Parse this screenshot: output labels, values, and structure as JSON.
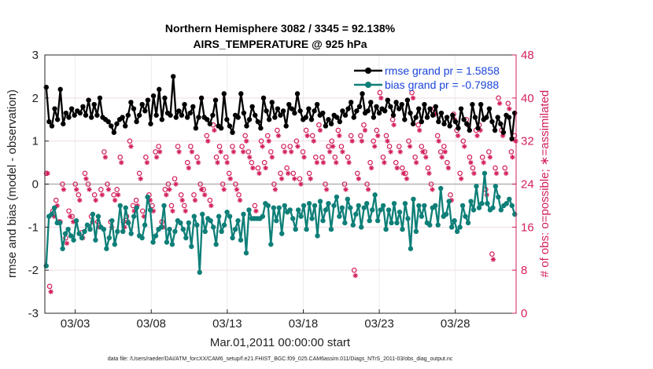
{
  "chart_data": {
    "type": "line",
    "title_line1": "Northern Hemisphere 3082 / 3345 = 92.138%",
    "title_line2": "AIRS_TEMPERATURE @ 925 hPa",
    "xlabel": "Mar.01,2011 00:00:00 start",
    "ylabel_left": "rmse and bias (model - observation)",
    "ylabel_right": "# of obs: o=possible; ∗=assimilated",
    "footer": "data file: /Users/raeder/DAI/ATM_forcXX/CAM6_setup/f.e21.FHIST_BGC.f09_025.CAM6assim.011/Diags_NTrS_2011-03/obs_diag_output.nc",
    "xlim": [
      1.0,
      32.0
    ],
    "ylim_left": [
      -3,
      3
    ],
    "ylim_right": [
      0,
      48
    ],
    "left_ticks": [
      "-3",
      "-2",
      "-1",
      "0",
      "1",
      "2",
      "3"
    ],
    "right_ticks": [
      "0",
      "8",
      "16",
      "24",
      "32",
      "40",
      "48"
    ],
    "x_ticks": [
      {
        "value": 3,
        "label": "03/03"
      },
      {
        "value": 8,
        "label": "03/08"
      },
      {
        "value": 13,
        "label": "03/13"
      },
      {
        "value": 18,
        "label": "03/18"
      },
      {
        "value": 23,
        "label": "03/23"
      },
      {
        "value": 28,
        "label": "03/28"
      }
    ],
    "legend": [
      {
        "name": "rmse",
        "label": "rmse grand pr = 1.5858"
      },
      {
        "name": "bias",
        "label": "bias grand pr = -0.7988"
      }
    ],
    "colors": {
      "rmse": "#000000",
      "bias": "#0e7f78",
      "obs": "#d21f5a",
      "zero_line": "#b4b4b4",
      "legend_text": "#1a44d8"
    },
    "series": [
      {
        "name": "rmse",
        "values": [
          2.25,
          1.45,
          1.35,
          1.75,
          1.5,
          2.2,
          1.4,
          1.65,
          1.55,
          1.75,
          1.6,
          1.7,
          1.65,
          1.8,
          1.6,
          1.95,
          1.55,
          1.85,
          1.6,
          2.0,
          1.55,
          1.5,
          1.45,
          1.35,
          1.2,
          1.4,
          1.5,
          1.55,
          1.35,
          1.6,
          1.9,
          1.75,
          1.45,
          1.6,
          1.85,
          1.7,
          1.95,
          1.4,
          2.05,
          1.6,
          2.2,
          1.5,
          2.0,
          1.65,
          1.6,
          2.5,
          1.55,
          1.7,
          1.6,
          1.85,
          1.55,
          1.65,
          1.8,
          1.3,
          1.55,
          2.0,
          1.55,
          1.5,
          1.4,
          1.6,
          1.95,
          1.35,
          1.3,
          2.1,
          1.5,
          1.35,
          1.2,
          1.6,
          1.55,
          2.1,
          1.65,
          1.35,
          1.5,
          1.8,
          1.6,
          1.45,
          1.3,
          2.0,
          1.7,
          1.5,
          1.9,
          1.55,
          1.75,
          1.6,
          1.7,
          1.35,
          1.85,
          1.75,
          1.65,
          2.1,
          1.7,
          1.5,
          1.55,
          1.75,
          1.5,
          1.7,
          1.85,
          1.6,
          1.65,
          1.35,
          1.5,
          1.4,
          1.6,
          1.55,
          1.45,
          1.7,
          1.6,
          1.75,
          1.9,
          1.55,
          1.7,
          1.8,
          2.1,
          1.65,
          1.7,
          1.9,
          1.55,
          1.8,
          1.65,
          1.75,
          1.7,
          1.95,
          1.8,
          1.6,
          1.9,
          1.75,
          1.85,
          1.5,
          1.95,
          1.65,
          1.4,
          1.55,
          1.75,
          1.45,
          1.85,
          1.55,
          1.75,
          1.6,
          1.8,
          1.45,
          1.65,
          1.4,
          1.55,
          1.35,
          1.6,
          1.45,
          1.3,
          1.75,
          1.5,
          1.4,
          1.25,
          1.85,
          1.55,
          1.3,
          1.85,
          1.5,
          1.55,
          1.75,
          1.45,
          1.25,
          1.55,
          1.4,
          1.2,
          1.6,
          1.55,
          1.05,
          1.65
        ]
      },
      {
        "name": "bias",
        "values": [
          -1.9,
          -0.75,
          -0.7,
          -0.55,
          -0.9,
          -0.9,
          -1.5,
          -1.15,
          -1.05,
          -1.2,
          -1.3,
          -0.85,
          -1.15,
          -1.25,
          -1.1,
          -0.95,
          -1.05,
          -0.7,
          -1.3,
          -0.75,
          -1.0,
          -1.05,
          -1.5,
          -1.25,
          -0.85,
          -1.4,
          -1.1,
          -0.5,
          -1.1,
          -0.55,
          -0.9,
          -1.15,
          -0.75,
          -0.55,
          -1.2,
          -1.25,
          -0.95,
          -0.3,
          -0.6,
          -1.35,
          -1.2,
          -1.05,
          -1.0,
          -0.5,
          -1.35,
          -1.05,
          -1.4,
          -1.1,
          -0.85,
          -0.9,
          -1.05,
          -1.25,
          -0.9,
          -1.45,
          -0.75,
          -0.95,
          -2.05,
          -0.7,
          -1.1,
          -0.8,
          -0.85,
          -1.0,
          -1.4,
          -0.75,
          -1.1,
          -0.95,
          -0.65,
          -0.75,
          -1.25,
          -1.05,
          -0.85,
          -1.3,
          -0.7,
          -1.6,
          -0.6,
          -0.8,
          -0.8,
          -0.8,
          -0.8,
          -0.75,
          -0.45,
          -0.5,
          -1.4,
          -0.55,
          -0.85,
          -0.55,
          -1.15,
          -0.5,
          -0.65,
          -0.6,
          -0.8,
          -1.05,
          -0.6,
          -0.75,
          -0.5,
          -1.05,
          -0.45,
          -0.8,
          -0.5,
          -1.2,
          -0.4,
          -0.85,
          -0.6,
          -0.45,
          -1.05,
          -0.5,
          -0.3,
          -0.75,
          -0.55,
          -0.9,
          -0.35,
          -0.55,
          -0.95,
          -0.7,
          -0.5,
          -1.0,
          -0.55,
          -0.45,
          -0.85,
          -0.6,
          -0.25,
          -0.85,
          -0.6,
          -0.5,
          -1.05,
          -0.6,
          -0.9,
          -0.45,
          -0.9,
          -0.65,
          -1.05,
          -0.45,
          -0.8,
          -1.5,
          -0.35,
          -1.1,
          -0.5,
          -0.75,
          -0.5,
          -0.9,
          -0.95,
          -0.55,
          -0.5,
          -0.95,
          -0.1,
          -0.75,
          -0.7,
          -0.4,
          -1.0,
          -0.85,
          -1.1,
          -1.0,
          -0.5,
          -0.75,
          -0.9,
          -0.4,
          -0.6,
          -0.05,
          -0.55,
          -0.45,
          0.25,
          -0.45,
          -0.6,
          -0.55,
          -0.05,
          -0.3,
          -0.6,
          -0.5,
          -0.45,
          -0.35,
          -0.5,
          -0.7
        ]
      },
      {
        "name": "obs_possible",
        "values": [
          26,
          5,
          19,
          21,
          17,
          24,
          14,
          19,
          18,
          24,
          22,
          15,
          26,
          24,
          18,
          22,
          17,
          23,
          30,
          24,
          17,
          22,
          23,
          29,
          17,
          18,
          32,
          20,
          21,
          26,
          19,
          29,
          22,
          20,
          30,
          31,
          17,
          23,
          24,
          20,
          25,
          31,
          22,
          20,
          28,
          31,
          22,
          29,
          24,
          23,
          33,
          21,
          35,
          29,
          31,
          24,
          29,
          26,
          31,
          24,
          22,
          31,
          33,
          30,
          28,
          20,
          27,
          32,
          28,
          33,
          30,
          24,
          34,
          26,
          31,
          27,
          31,
          26,
          32,
          25,
          30,
          34,
          26,
          33,
          29,
          35,
          29,
          24,
          31,
          32,
          29,
          34,
          31,
          24,
          29,
          33,
          8,
          26,
          33,
          35,
          24,
          28,
          32,
          34,
          41,
          29,
          33,
          31,
          36,
          28,
          31,
          27,
          26,
          32,
          41,
          29,
          35,
          31,
          30,
          27,
          24,
          38,
          33,
          30,
          31,
          28,
          22,
          37,
          34,
          26,
          32,
          36,
          29,
          27,
          34,
          35,
          29,
          23,
          30,
          11,
          27,
          40,
          34,
          27,
          39,
          30,
          33
        ]
      },
      {
        "name": "obs_assimilated",
        "values": [
          26,
          4,
          18,
          20,
          17,
          23,
          13,
          18,
          17,
          23,
          21,
          14,
          25,
          23,
          17,
          21,
          16,
          22,
          29,
          23,
          16,
          21,
          22,
          28,
          16,
          17,
          31,
          19,
          20,
          25,
          18,
          28,
          21,
          19,
          29,
          30,
          16,
          22,
          23,
          19,
          24,
          30,
          21,
          19,
          27,
          30,
          21,
          28,
          23,
          22,
          32,
          20,
          34,
          28,
          30,
          23,
          28,
          25,
          30,
          23,
          21,
          30,
          32,
          29,
          27,
          19,
          26,
          31,
          27,
          32,
          29,
          23,
          33,
          25,
          30,
          26,
          30,
          25,
          31,
          24,
          29,
          33,
          25,
          32,
          28,
          34,
          28,
          23,
          30,
          31,
          28,
          33,
          30,
          23,
          28,
          32,
          7,
          25,
          32,
          34,
          23,
          27,
          31,
          33,
          40,
          28,
          32,
          30,
          35,
          27,
          30,
          26,
          25,
          31,
          40,
          28,
          34,
          30,
          29,
          26,
          23,
          37,
          32,
          29,
          30,
          27,
          21,
          36,
          33,
          25,
          31,
          35,
          28,
          26,
          33,
          34,
          28,
          22,
          29,
          10,
          26,
          39,
          33,
          26,
          38,
          29,
          32
        ]
      }
    ]
  }
}
